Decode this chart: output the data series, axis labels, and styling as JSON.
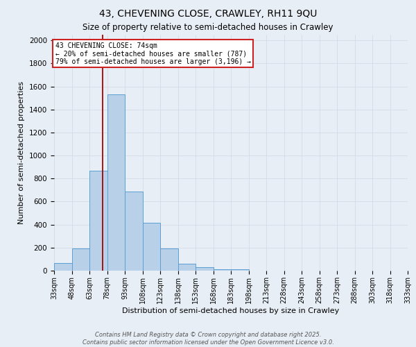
{
  "title1": "43, CHEVENING CLOSE, CRAWLEY, RH11 9QU",
  "title2": "Size of property relative to semi-detached houses in Crawley",
  "xlabel": "Distribution of semi-detached houses by size in Crawley",
  "ylabel": "Number of semi-detached properties",
  "bin_labels": [
    "33sqm",
    "48sqm",
    "63sqm",
    "78sqm",
    "93sqm",
    "108sqm",
    "123sqm",
    "138sqm",
    "153sqm",
    "168sqm",
    "183sqm",
    "198sqm",
    "213sqm",
    "228sqm",
    "243sqm",
    "258sqm",
    "273sqm",
    "288sqm",
    "303sqm",
    "318sqm",
    "333sqm"
  ],
  "bin_edges": [
    33,
    48,
    63,
    78,
    93,
    108,
    123,
    138,
    153,
    168,
    183,
    198,
    213,
    228,
    243,
    258,
    273,
    288,
    303,
    318,
    333
  ],
  "bar_heights": [
    65,
    195,
    870,
    1530,
    685,
    415,
    195,
    60,
    30,
    15,
    15,
    0,
    0,
    0,
    0,
    0,
    0,
    0,
    0,
    0
  ],
  "bar_color": "#b8d0e8",
  "bar_edgecolor": "#5a9fd4",
  "grid_color": "#d0d8e4",
  "bg_color": "#e8eef5",
  "property_line_x": 74,
  "red_line_color": "#aa0000",
  "annotation_text1": "43 CHEVENING CLOSE: 74sqm",
  "annotation_text2": "← 20% of semi-detached houses are smaller (787)",
  "annotation_text3": "79% of semi-detached houses are larger (3,196) →",
  "annotation_box_color": "#ffffff",
  "annotation_border_color": "#cc2222",
  "ylim": [
    0,
    2050
  ],
  "yticks": [
    0,
    200,
    400,
    600,
    800,
    1000,
    1200,
    1400,
    1600,
    1800,
    2000
  ],
  "footer_text": "Contains HM Land Registry data © Crown copyright and database right 2025.\nContains public sector information licensed under the Open Government Licence v3.0.",
  "bin_width": 15
}
